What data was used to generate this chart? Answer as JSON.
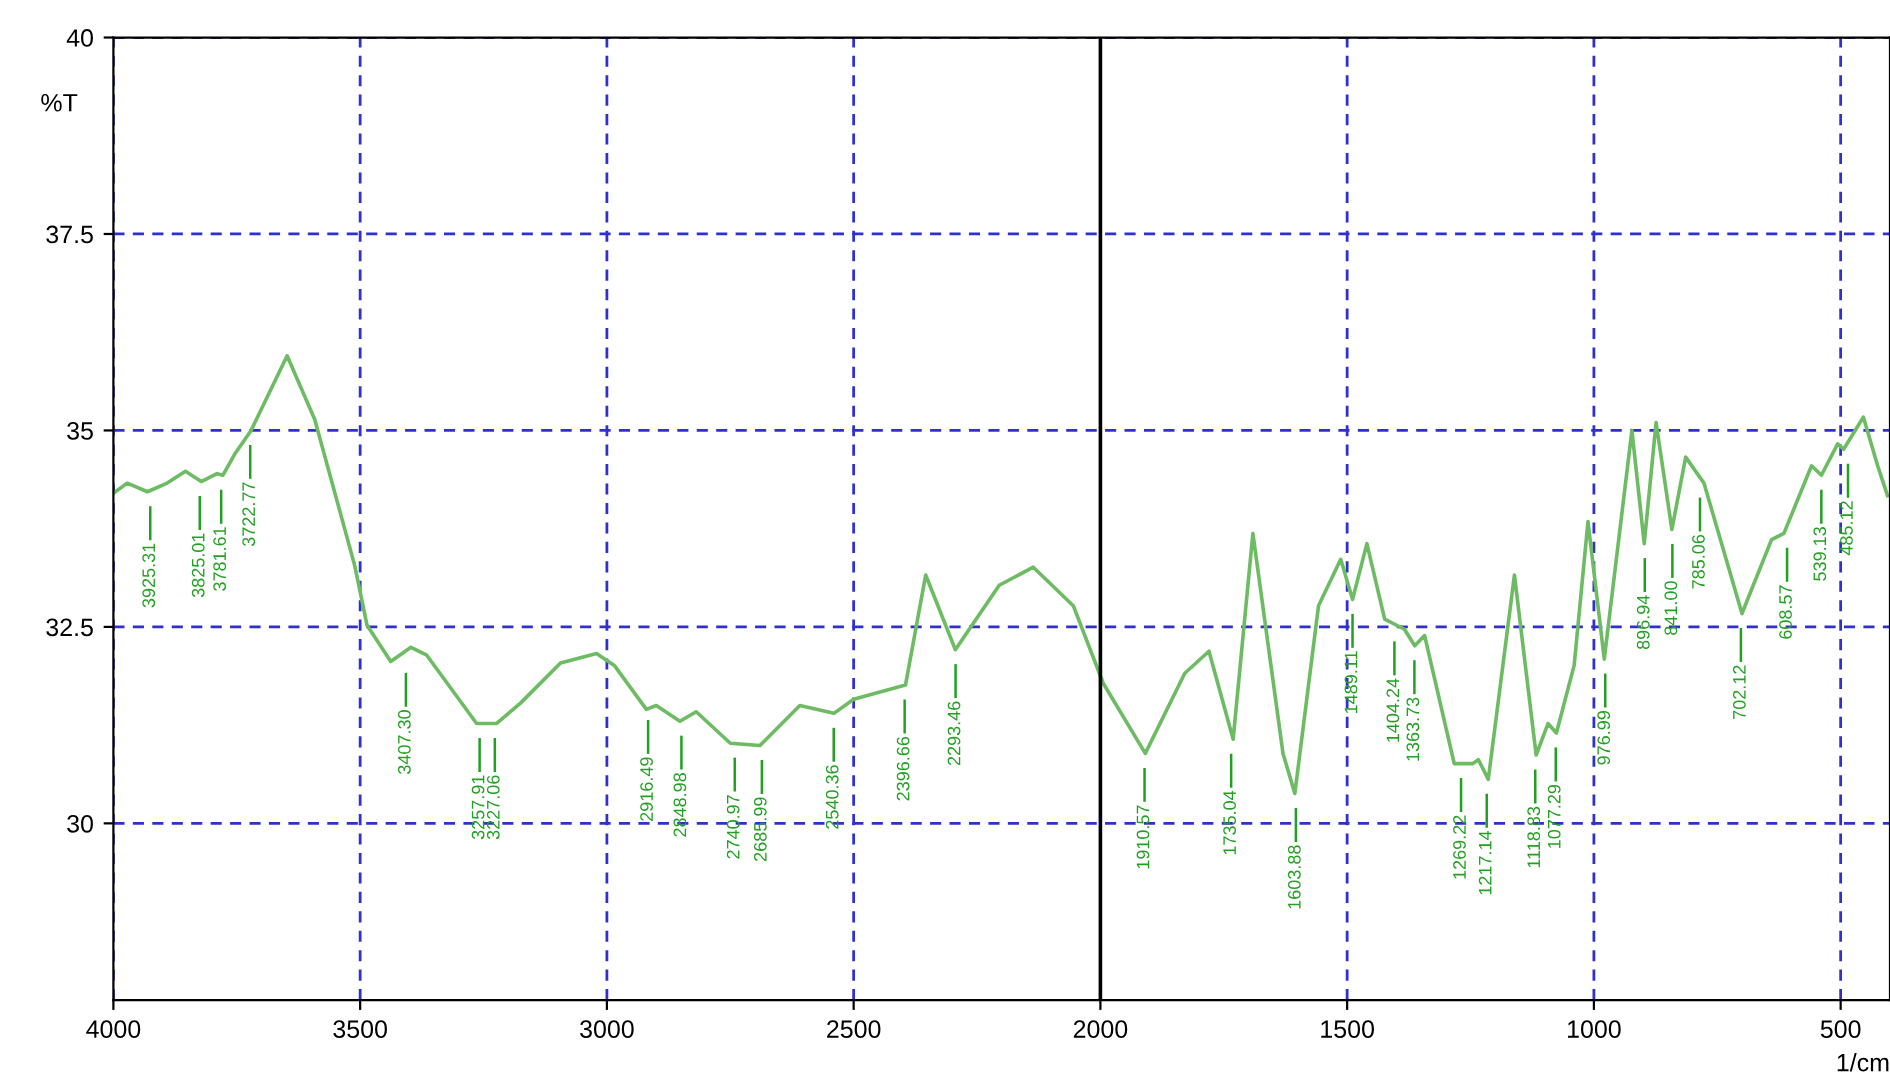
{
  "chart_data": {
    "type": "line",
    "ylabel": "%T",
    "xlabel": "1/cm",
    "x": [
      4000,
      3972,
      3931,
      3891,
      3854,
      3822,
      3790,
      3778,
      3753,
      3721,
      3648,
      3592,
      3511,
      3486,
      3438,
      3397,
      3365,
      3264,
      3224,
      3175,
      3094,
      3021,
      2985,
      2920,
      2900,
      2852,
      2819,
      2750,
      2690,
      2609,
      2540,
      2500,
      2395,
      2354,
      2294,
      2205,
      2136,
      2055,
      1994,
      1909,
      1829,
      1780,
      1731,
      1691,
      1630,
      1606,
      1558,
      1513,
      1489,
      1460,
      1424,
      1384,
      1363,
      1343,
      1283,
      1246,
      1234,
      1214,
      1161,
      1117,
      1093,
      1076,
      1040,
      1012,
      979,
      923,
      898,
      874,
      842,
      814,
      777,
      700,
      640,
      615,
      559,
      539,
      506,
      494,
      454,
      425,
      405
    ],
    "series": [
      {
        "color": "#6dbb63",
        "values": [
          34.2,
          34.33,
          34.22,
          34.33,
          34.48,
          34.35,
          34.45,
          34.43,
          34.71,
          35.0,
          35.95,
          35.14,
          33.28,
          32.52,
          32.06,
          32.24,
          32.14,
          31.27,
          31.27,
          31.53,
          32.04,
          32.16,
          32.01,
          31.45,
          31.5,
          31.3,
          31.42,
          31.02,
          30.99,
          31.5,
          31.4,
          31.58,
          31.76,
          33.16,
          32.21,
          33.03,
          33.26,
          32.77,
          31.78,
          30.89,
          31.91,
          32.19,
          31.07,
          33.69,
          30.89,
          30.38,
          32.77,
          33.36,
          32.85,
          33.56,
          32.6,
          32.47,
          32.26,
          32.39,
          30.76,
          30.76,
          30.81,
          30.56,
          33.16,
          30.87,
          31.27,
          31.15,
          32.01,
          33.84,
          32.09,
          35.0,
          33.56,
          35.1,
          33.74,
          34.66,
          34.33,
          32.67,
          33.61,
          33.69,
          34.55,
          34.43,
          34.83,
          34.76,
          35.17,
          34.55,
          34.17
        ]
      }
    ],
    "xlim": [
      4000,
      400
    ],
    "ylim": [
      27.75,
      40
    ],
    "xticks": [
      4000,
      3500,
      3000,
      2500,
      2000,
      1500,
      1000,
      500
    ],
    "yticks": [
      30,
      32.5,
      35,
      37.5,
      40
    ],
    "grid": true,
    "marker": "none",
    "line_style": "solid",
    "ref_lines": [
      {
        "axis": "x",
        "value": 2000,
        "color": "#000000",
        "line_style": "solid"
      }
    ],
    "annotations": [
      {
        "text": "3925.31",
        "x": 3925.31,
        "y": 34.22
      },
      {
        "text": "3825.01",
        "x": 3825.01,
        "y": 34.35
      },
      {
        "text": "3781.61",
        "x": 3781.61,
        "y": 34.43
      },
      {
        "text": "3722.77",
        "x": 3722.77,
        "y": 35.0
      },
      {
        "text": "3407.30",
        "x": 3407.3,
        "y": 32.1
      },
      {
        "text": "3257.91",
        "x": 3257.91,
        "y": 31.27
      },
      {
        "text": "3227.06",
        "x": 3227.06,
        "y": 31.27
      },
      {
        "text": "2916.49",
        "x": 2916.49,
        "y": 31.5
      },
      {
        "text": "2848.98",
        "x": 2848.98,
        "y": 31.3
      },
      {
        "text": "2740.97",
        "x": 2740.97,
        "y": 31.02
      },
      {
        "text": "2685.99",
        "x": 2685.99,
        "y": 30.99
      },
      {
        "text": "2540.36",
        "x": 2540.36,
        "y": 31.4
      },
      {
        "text": "2396.66",
        "x": 2396.66,
        "y": 31.76
      },
      {
        "text": "2293.46",
        "x": 2293.46,
        "y": 32.21
      },
      {
        "text": "1910.57",
        "x": 1910.57,
        "y": 30.89
      },
      {
        "text": "1735.04",
        "x": 1735.04,
        "y": 31.07
      },
      {
        "text": "1603.88",
        "x": 1603.88,
        "y": 30.38
      },
      {
        "text": "1489.11",
        "x": 1489.11,
        "y": 32.85
      },
      {
        "text": "1404.24",
        "x": 1404.24,
        "y": 32.5
      },
      {
        "text": "1363.73",
        "x": 1363.73,
        "y": 32.26
      },
      {
        "text": "1269.22",
        "x": 1269.22,
        "y": 30.76
      },
      {
        "text": "1217.14",
        "x": 1217.14,
        "y": 30.56
      },
      {
        "text": "1118.83",
        "x": 1118.83,
        "y": 30.87
      },
      {
        "text": "1077.29",
        "x": 1077.29,
        "y": 31.15
      },
      {
        "text": "976.99",
        "x": 976.99,
        "y": 32.09
      },
      {
        "text": "896.94",
        "x": 896.94,
        "y": 33.56
      },
      {
        "text": "841.00",
        "x": 841.0,
        "y": 33.74
      },
      {
        "text": "785.06",
        "x": 785.06,
        "y": 34.33
      },
      {
        "text": "702.12",
        "x": 702.12,
        "y": 32.67
      },
      {
        "text": "608.57",
        "x": 608.57,
        "y": 33.69
      },
      {
        "text": "539.13",
        "x": 539.13,
        "y": 34.43
      },
      {
        "text": "485.12",
        "x": 485.12,
        "y": 34.76
      }
    ]
  }
}
